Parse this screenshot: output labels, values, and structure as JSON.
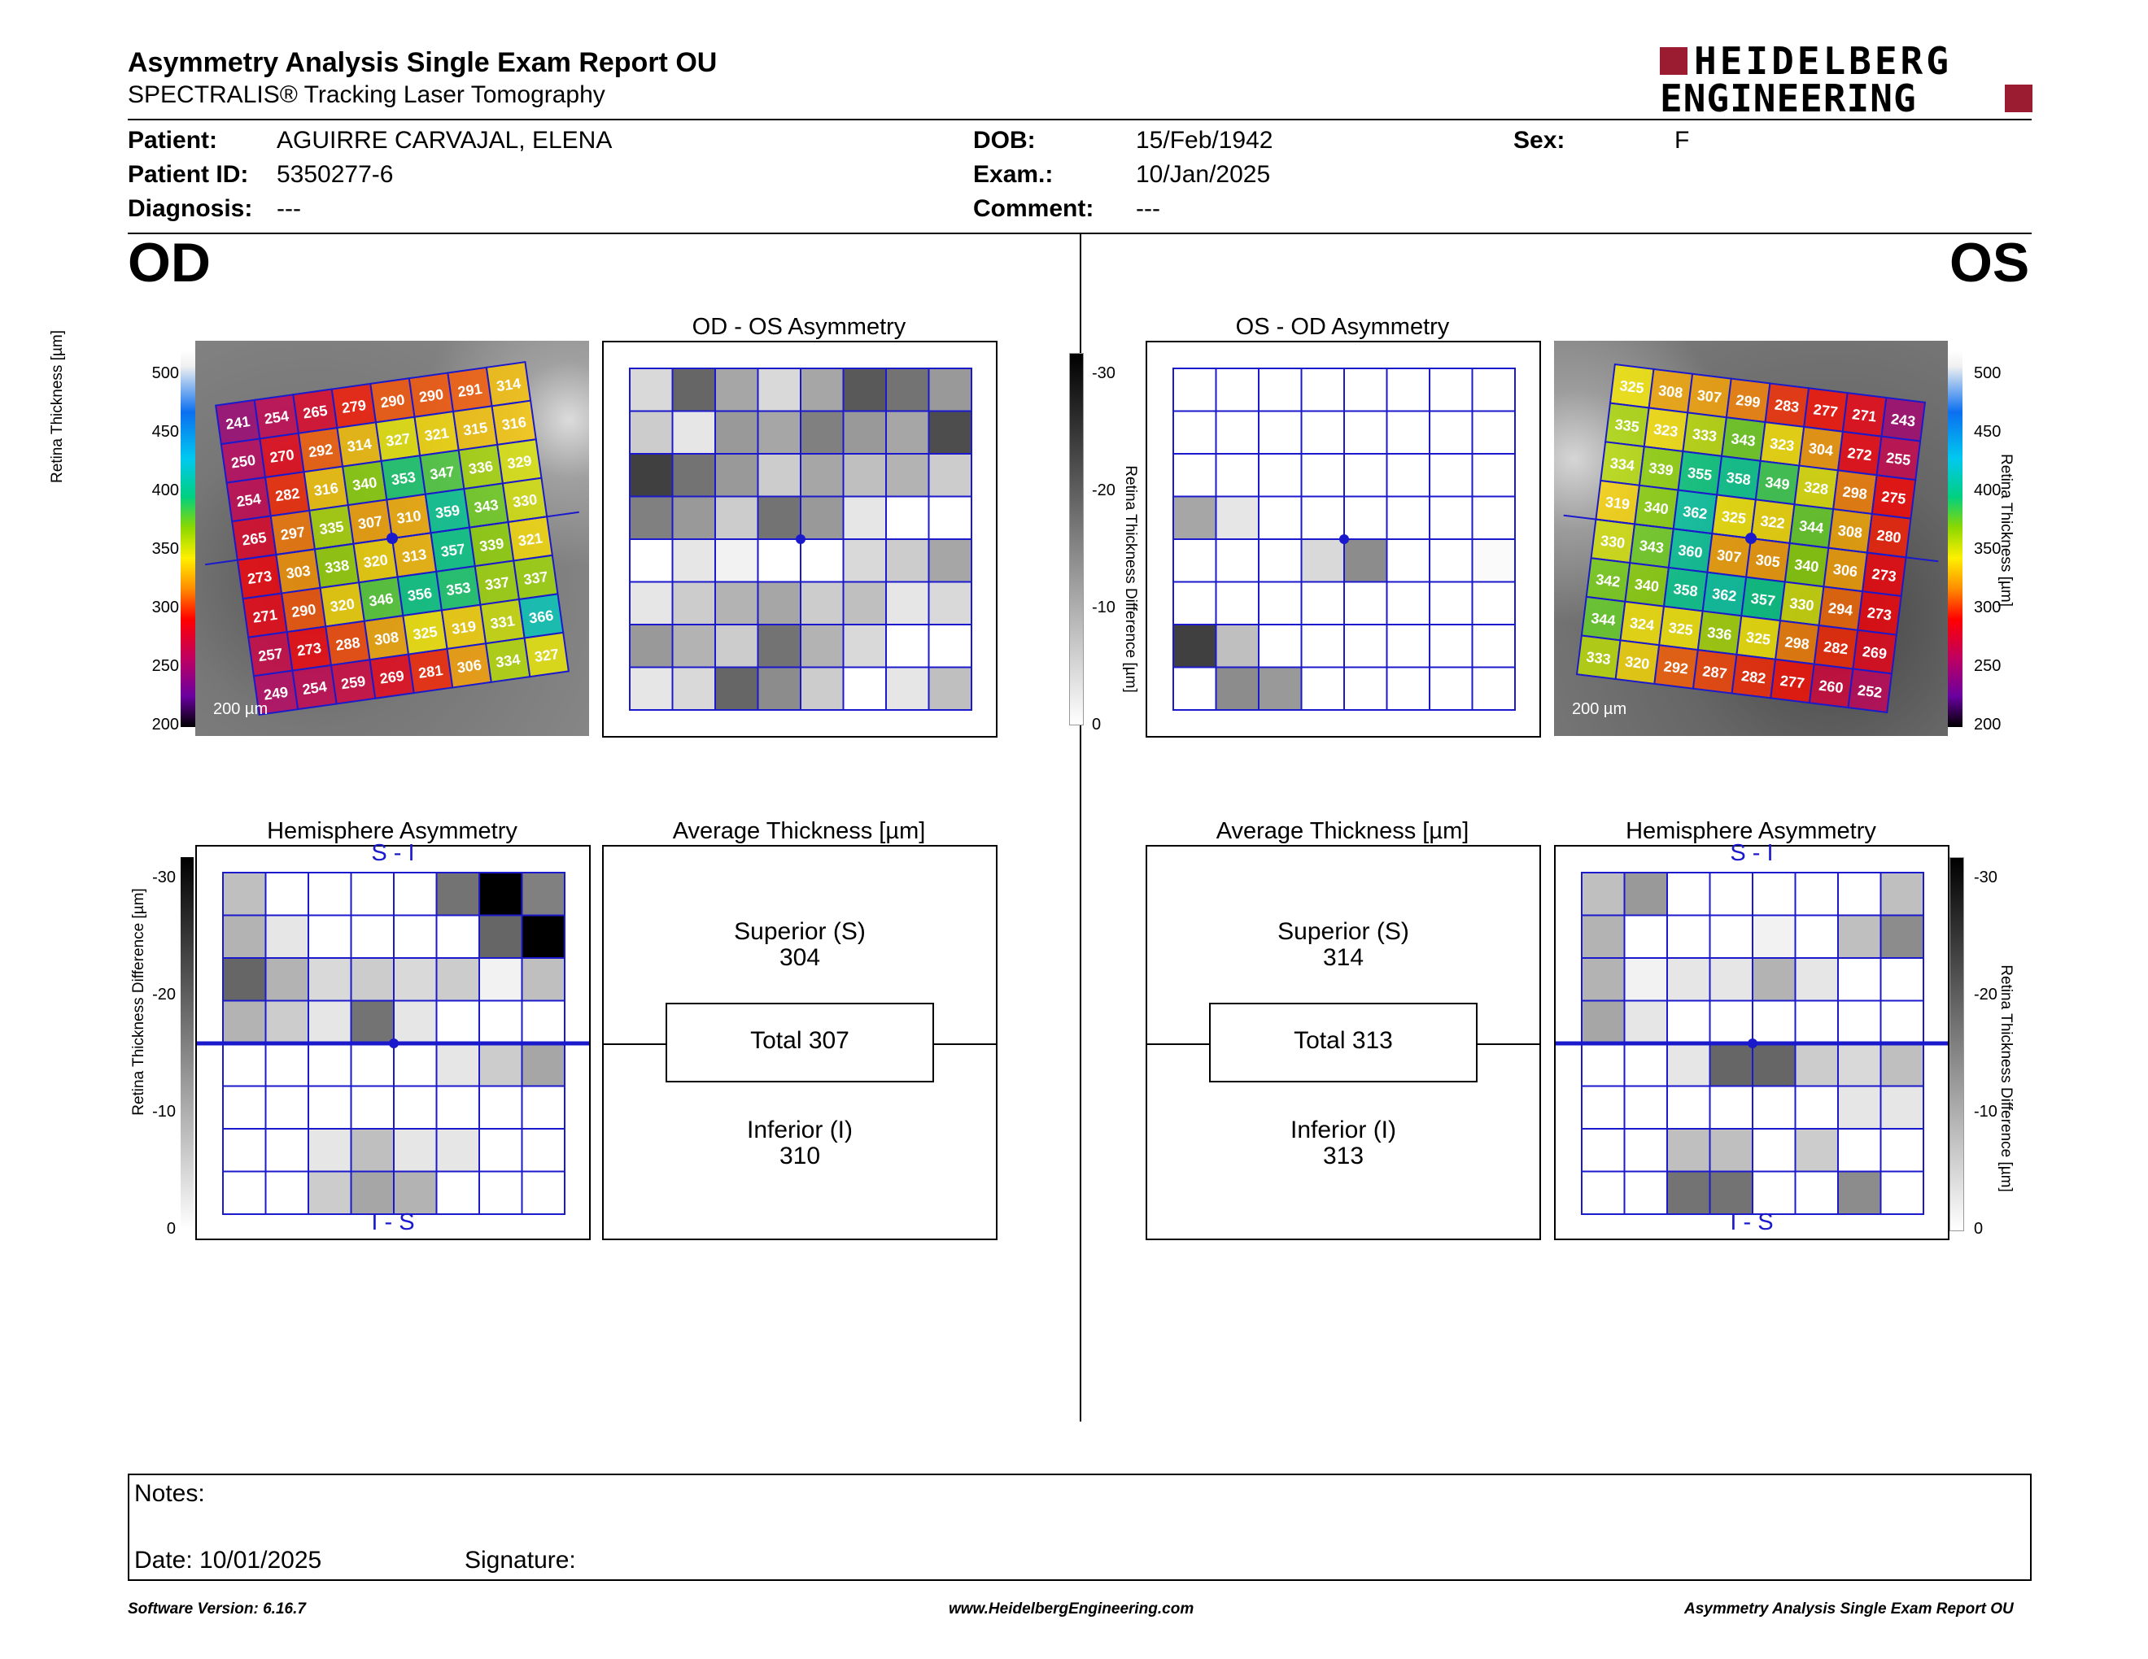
{
  "header": {
    "title": "Asymmetry Analysis Single Exam Report OU",
    "subtitle": "SPECTRALIS® Tracking Laser Tomography",
    "logo_line1": "HEIDELBERG",
    "logo_line2": "ENGINEERING",
    "logo_color": "#9b1b30"
  },
  "patient": {
    "patient_label": "Patient:",
    "patient_value": "AGUIRRE CARVAJAL, ELENA",
    "id_label": "Patient ID:",
    "id_value": "5350277-6",
    "diagnosis_label": "Diagnosis:",
    "diagnosis_value": "---",
    "dob_label": "DOB:",
    "dob_value": "15/Feb/1942",
    "exam_label": "Exam.:",
    "exam_value": "10/Jan/2025",
    "comment_label": "Comment:",
    "comment_value": "---",
    "sex_label": "Sex:",
    "sex_value": "F"
  },
  "od": {
    "eye_label": "OD",
    "asym_title": "OD - OS Asymmetry",
    "hemi_title": "Hemisphere Asymmetry",
    "hemi_top": "S - I",
    "hemi_bottom": "I - S",
    "avg_title": "Average Thickness [µm]",
    "superior_label": "Superior (S)",
    "superior_value": "304",
    "total_label": "Total 307",
    "inferior_label": "Inferior (I)",
    "inferior_value": "310",
    "scale_label": "200 µm",
    "thickness_grid": [
      [
        241,
        254,
        265,
        279,
        290,
        290,
        291,
        314
      ],
      [
        250,
        270,
        292,
        314,
        327,
        321,
        315,
        316
      ],
      [
        254,
        282,
        316,
        340,
        353,
        347,
        336,
        329
      ],
      [
        265,
        297,
        335,
        307,
        310,
        359,
        343,
        330
      ],
      [
        273,
        303,
        338,
        320,
        313,
        357,
        339,
        321
      ],
      [
        271,
        290,
        320,
        346,
        356,
        353,
        337,
        337
      ],
      [
        257,
        273,
        288,
        308,
        325,
        319,
        331,
        366
      ],
      [
        249,
        254,
        259,
        269,
        281,
        306,
        334,
        327
      ]
    ],
    "asym_grid": [
      [
        0.15,
        0.6,
        0.35,
        0.15,
        0.35,
        0.65,
        0.55,
        0.4
      ],
      [
        0.2,
        0.1,
        0.4,
        0.35,
        0.5,
        0.4,
        0.35,
        0.7
      ],
      [
        0.75,
        0.55,
        0.4,
        0.2,
        0.35,
        0.25,
        0.3,
        0.2
      ],
      [
        0.5,
        0.4,
        0.2,
        0.55,
        0.4,
        0.1,
        0,
        0
      ],
      [
        0,
        0.1,
        0.05,
        0,
        0,
        0.15,
        0.2,
        0.35
      ],
      [
        0.1,
        0.2,
        0.3,
        0.35,
        0.2,
        0.25,
        0.1,
        0.15
      ],
      [
        0.4,
        0.3,
        0.2,
        0.55,
        0.3,
        0.15,
        0,
        0
      ],
      [
        0.1,
        0.15,
        0.6,
        0.45,
        0.2,
        0,
        0.1,
        0.25
      ]
    ],
    "hemi_grid": [
      [
        0.25,
        0,
        0,
        0,
        0,
        0.55,
        1,
        0.5
      ],
      [
        0.3,
        0.1,
        0,
        0,
        0,
        0,
        0.6,
        1
      ],
      [
        0.6,
        0.3,
        0.15,
        0.2,
        0.15,
        0.2,
        0.05,
        0.25
      ],
      [
        0.3,
        0.2,
        0.1,
        0.55,
        0.1,
        0,
        0,
        0
      ],
      [
        0,
        0,
        0,
        0,
        0,
        0.1,
        0.2,
        0.35
      ],
      [
        0,
        0,
        0,
        0,
        0,
        0,
        0,
        0
      ],
      [
        0,
        0,
        0.1,
        0.25,
        0.1,
        0.1,
        0,
        0
      ],
      [
        0,
        0,
        0.2,
        0.35,
        0.3,
        0,
        0,
        0
      ]
    ]
  },
  "os": {
    "eye_label": "OS",
    "asym_title": "OS - OD Asymmetry",
    "hemi_title": "Hemisphere Asymmetry",
    "hemi_top": "S - I",
    "hemi_bottom": "I - S",
    "avg_title": "Average Thickness [µm]",
    "superior_label": "Superior (S)",
    "superior_value": "314",
    "total_label": "Total 313",
    "inferior_label": "Inferior (I)",
    "inferior_value": "313",
    "scale_label": "200 µm",
    "thickness_grid": [
      [
        325,
        308,
        307,
        299,
        283,
        277,
        271,
        243
      ],
      [
        335,
        323,
        333,
        343,
        323,
        304,
        272,
        255
      ],
      [
        334,
        339,
        355,
        358,
        349,
        328,
        298,
        275
      ],
      [
        319,
        340,
        362,
        325,
        322,
        344,
        308,
        280
      ],
      [
        330,
        343,
        360,
        307,
        305,
        340,
        306,
        273
      ],
      [
        342,
        340,
        358,
        362,
        357,
        330,
        294,
        273
      ],
      [
        344,
        324,
        325,
        336,
        325,
        298,
        282,
        269
      ],
      [
        333,
        320,
        292,
        287,
        282,
        277,
        260,
        252
      ]
    ],
    "asym_grid": [
      [
        0,
        0,
        0,
        0,
        0,
        0,
        0,
        0
      ],
      [
        0,
        0,
        0,
        0,
        0,
        0,
        0,
        0
      ],
      [
        0,
        0,
        0,
        0,
        0,
        0,
        0,
        0
      ],
      [
        0.35,
        0.1,
        0,
        0,
        0,
        0,
        0,
        0
      ],
      [
        0,
        0,
        0,
        0.15,
        0.45,
        0,
        0,
        0.02
      ],
      [
        0,
        0,
        0,
        0,
        0,
        0,
        0,
        0
      ],
      [
        0.75,
        0.25,
        0,
        0,
        0,
        0,
        0,
        0
      ],
      [
        0,
        0.45,
        0.4,
        0,
        0,
        0,
        0,
        0
      ]
    ],
    "hemi_grid": [
      [
        0.25,
        0.4,
        0,
        0,
        0,
        0,
        0,
        0.25
      ],
      [
        0.3,
        0,
        0,
        0,
        0.05,
        0,
        0.25,
        0.45
      ],
      [
        0.3,
        0.05,
        0.1,
        0.1,
        0.3,
        0.1,
        0,
        0
      ],
      [
        0.35,
        0.1,
        0,
        0,
        0,
        0,
        0,
        0
      ],
      [
        0,
        0,
        0.1,
        0.6,
        0.6,
        0.2,
        0.15,
        0.25
      ],
      [
        0,
        0,
        0,
        0,
        0,
        0,
        0.1,
        0.1
      ],
      [
        0,
        0,
        0.25,
        0.25,
        0,
        0.2,
        0,
        0
      ],
      [
        0,
        0,
        0.55,
        0.55,
        0,
        0,
        0.45,
        0
      ]
    ]
  },
  "colorbar": {
    "thickness_ticks": [
      "500",
      "450",
      "400",
      "350",
      "300",
      "250",
      "200"
    ],
    "thickness_label": "Retina Thickness [µm]",
    "diff_ticks": [
      "-30",
      "-20",
      "-10",
      "0"
    ],
    "diff_label": "Retina Thickness Difference [µm]"
  },
  "notes": {
    "notes_label": "Notes:",
    "date_label": "Date: 10/01/2025",
    "signature_label": "Signature:"
  },
  "footer": {
    "software": "Software Version: 6.16.7",
    "website": "www.HeidelbergEngineering.com",
    "report": "Asymmetry Analysis Single Exam Report OU"
  }
}
